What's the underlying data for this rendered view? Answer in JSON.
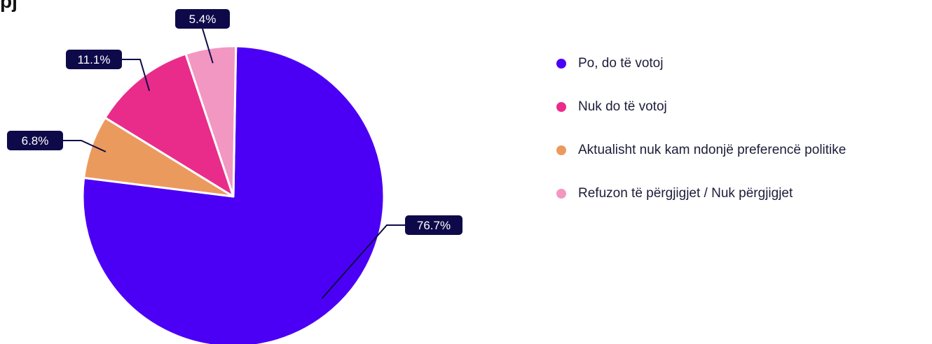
{
  "chart_data": {
    "type": "pie",
    "start_angle_deg": 1,
    "direction": "clockwise",
    "slices": [
      {
        "label": "Po, do të votoj",
        "value": 76.7,
        "display": "76.7%",
        "color": "#4b00f5"
      },
      {
        "label": "Aktualisht nuk kam ndonjë preferencë politike",
        "value": 6.8,
        "display": "6.8%",
        "color": "#eb9a5e"
      },
      {
        "label": "Nuk do të votoj",
        "value": 11.1,
        "display": "11.1%",
        "color": "#e92c8a"
      },
      {
        "label": "Refuzon të përgjigjet / Nuk përgjigjet",
        "value": 5.4,
        "display": "5.4%",
        "color": "#f297c2"
      }
    ],
    "legend": {
      "placement": "right",
      "entries": [
        {
          "label": "Po, do të votoj",
          "color": "#4b00f5"
        },
        {
          "label": "Nuk do të votoj",
          "color": "#e92c8a"
        },
        {
          "label": "Aktualisht nuk kam ndonjë preferencë politike",
          "color": "#eb9a5e"
        },
        {
          "label": "Refuzon të përgjigjet / Nuk përgjigjet",
          "color": "#f297c2"
        }
      ]
    }
  }
}
